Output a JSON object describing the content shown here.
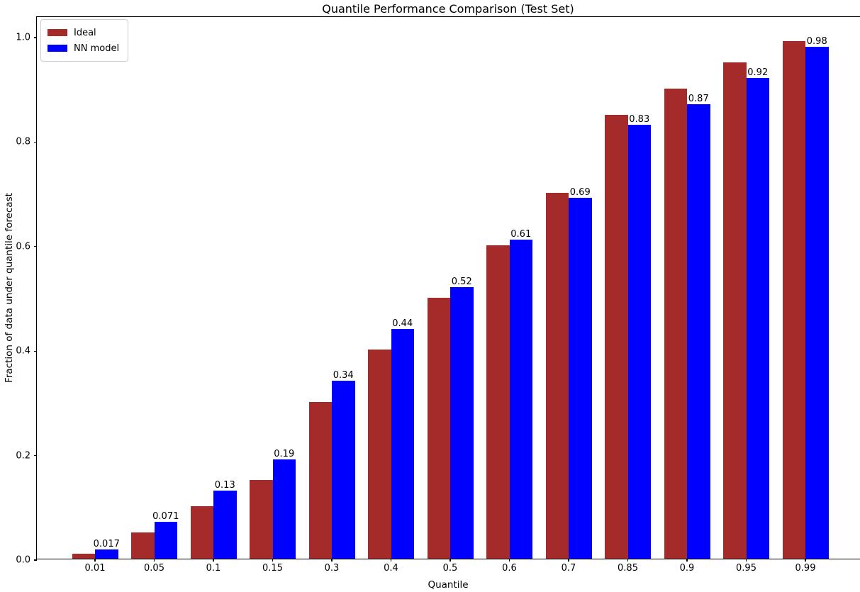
{
  "chart_data": {
    "type": "bar",
    "title": "Quantile Performance Comparison (Test Set)",
    "xlabel": "Quantile",
    "ylabel": "Fraction of data under quantile forecast",
    "categories": [
      "0.01",
      "0.05",
      "0.1",
      "0.15",
      "0.3",
      "0.4",
      "0.5",
      "0.6",
      "0.7",
      "0.85",
      "0.9",
      "0.95",
      "0.99"
    ],
    "series": [
      {
        "name": "Ideal",
        "color": "#A52A2A",
        "values": [
          0.01,
          0.05,
          0.1,
          0.15,
          0.3,
          0.4,
          0.5,
          0.6,
          0.7,
          0.85,
          0.9,
          0.95,
          0.99
        ]
      },
      {
        "name": "NN model",
        "color": "#0000FF",
        "values": [
          0.017,
          0.071,
          0.13,
          0.19,
          0.34,
          0.44,
          0.52,
          0.61,
          0.69,
          0.83,
          0.87,
          0.92,
          0.98
        ],
        "bar_labels": [
          "0.017",
          "0.071",
          "0.13",
          "0.19",
          "0.34",
          "0.44",
          "0.52",
          "0.61",
          "0.69",
          "0.83",
          "0.87",
          "0.92",
          "0.98"
        ]
      }
    ],
    "yticks": {
      "values": [
        0.0,
        0.2,
        0.4,
        0.6,
        0.8,
        1.0
      ],
      "labels": [
        "0.0",
        "0.2",
        "0.4",
        "0.6",
        "0.8",
        "1.0"
      ]
    },
    "ylim": [
      0.0,
      1.04
    ],
    "grid": false,
    "legend_position": "upper left"
  }
}
